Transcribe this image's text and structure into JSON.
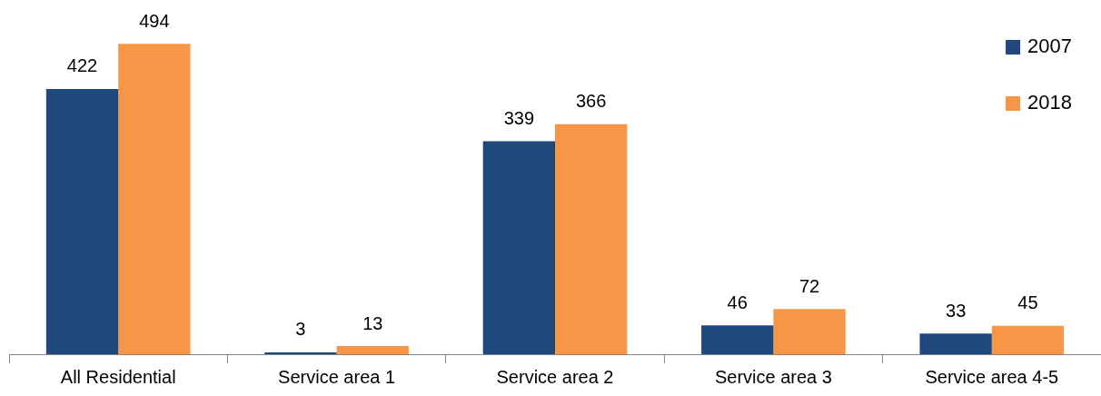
{
  "chart_data": {
    "type": "bar",
    "categories": [
      "All Residential",
      "Service area 1",
      "Service area 2",
      "Service area 3",
      "Service area 4-5"
    ],
    "series": [
      {
        "name": "2007",
        "color": "#1f497d",
        "values": [
          422,
          3,
          339,
          46,
          33
        ]
      },
      {
        "name": "2018",
        "color": "#f79646",
        "values": [
          494,
          13,
          366,
          72,
          45
        ]
      }
    ],
    "data_labels": true,
    "legend": "top right",
    "grid": false
  }
}
